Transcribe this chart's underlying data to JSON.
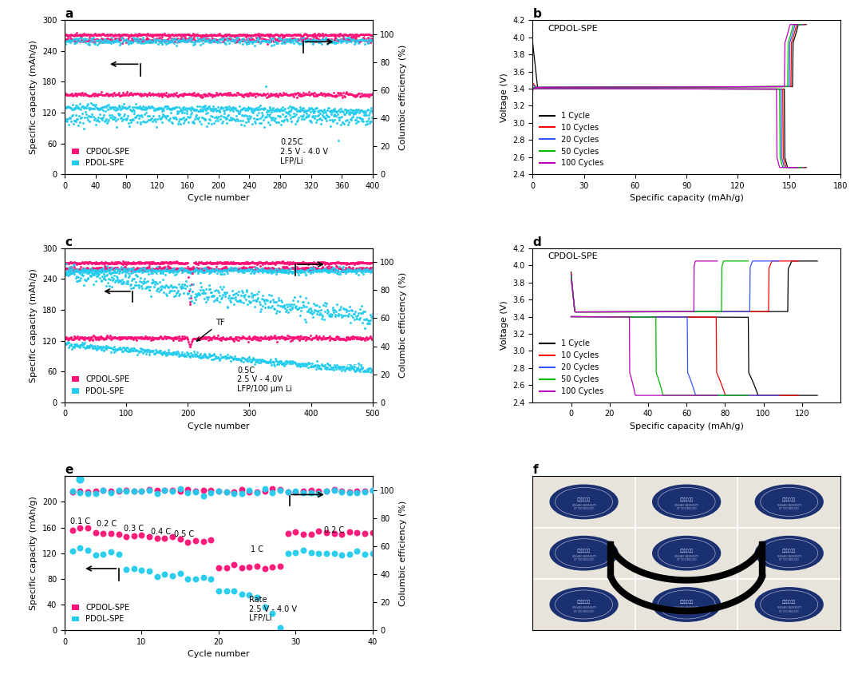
{
  "panel_a": {
    "xlabel": "Cycle number",
    "ylabel": "Specific capacity (mAh/g)",
    "ylabel2": "Columbic efficiency (%)",
    "xlim": [
      0,
      400
    ],
    "ylim1": [
      0,
      300
    ],
    "ylim2": [
      0,
      110
    ],
    "xticks": [
      0,
      40,
      80,
      120,
      160,
      200,
      240,
      280,
      320,
      360,
      400
    ],
    "yticks1": [
      0,
      60,
      120,
      180,
      240,
      300
    ],
    "yticks2": [
      0,
      20,
      40,
      60,
      80,
      100
    ],
    "annotation": "0.25C\n2.5 V - 4.0 V\nLFP/Li"
  },
  "panel_b": {
    "xlabel": "Specific capacity (mAh/g)",
    "ylabel": "Voltage (V)",
    "xlim": [
      0,
      180
    ],
    "ylim": [
      2.4,
      4.2
    ],
    "xticks": [
      0,
      30,
      60,
      90,
      120,
      150,
      180
    ],
    "yticks": [
      2.4,
      2.6,
      2.8,
      3.0,
      3.2,
      3.4,
      3.6,
      3.8,
      4.0,
      4.2
    ],
    "label": "CPDOL-SPE",
    "cycles": [
      "1 Cycle",
      "10 Cycles",
      "20 Cycles",
      "50 Cycles",
      "100 Cycles"
    ],
    "colors": [
      "#000000",
      "#FF0000",
      "#3355FF",
      "#00BB00",
      "#BB00BB"
    ]
  },
  "panel_c": {
    "xlabel": "Cycle number",
    "ylabel": "Specific capacity (mAh/g)",
    "ylabel2": "Columbic efficiency (%)",
    "xlim": [
      0,
      500
    ],
    "ylim1": [
      0,
      300
    ],
    "ylim2": [
      0,
      110
    ],
    "xticks": [
      0,
      100,
      200,
      300,
      400,
      500
    ],
    "yticks1": [
      0,
      60,
      120,
      180,
      240,
      300
    ],
    "yticks2": [
      0,
      20,
      40,
      60,
      80,
      100
    ],
    "annotation": "0.5C\n2.5 V - 4.0V\nLFP/100 μm Li"
  },
  "panel_d": {
    "xlabel": "Specific capacity (mAh/g)",
    "ylabel": "Voltage (V)",
    "xlim": [
      -20,
      140
    ],
    "ylim": [
      2.4,
      4.2
    ],
    "xticks": [
      0,
      20,
      40,
      60,
      80,
      100,
      120
    ],
    "yticks": [
      2.4,
      2.6,
      2.8,
      3.0,
      3.2,
      3.4,
      3.6,
      3.8,
      4.0,
      4.2
    ],
    "label": "CPDOL-SPE",
    "cycles": [
      "1 Cycle",
      "10 Cycles",
      "20 Cycles",
      "50 Cycles",
      "100 Cycles"
    ],
    "colors": [
      "#000000",
      "#FF0000",
      "#3355FF",
      "#00BB00",
      "#BB00BB"
    ]
  },
  "panel_e": {
    "xlabel": "Cycle number",
    "ylabel": "Specific capacity (mAh/g)",
    "ylabel2": "Columbic efficiency (%)",
    "xlim": [
      0,
      40
    ],
    "ylim1": [
      0,
      240
    ],
    "ylim2": [
      0,
      110
    ],
    "xticks": [
      0,
      10,
      20,
      30,
      40
    ],
    "yticks1": [
      0,
      40,
      80,
      120,
      160,
      200
    ],
    "yticks2": [
      0,
      20,
      40,
      60,
      80,
      100
    ],
    "annotation": "Rate\n2.5 V - 4.0 V\nLFP/Li",
    "rate_labels": [
      "0.1 C",
      "0.2 C",
      "0.3 C",
      "0.4 C",
      "0.5 C",
      "1 C",
      "0.2 C"
    ],
    "rate_x": [
      2.0,
      5.5,
      9.0,
      12.5,
      15.5,
      25.0,
      35.0
    ],
    "rate_y": [
      163,
      160,
      152,
      147,
      143,
      120,
      150
    ]
  },
  "colors": {
    "cpdol": "#FF1177",
    "pdol": "#22CCEE",
    "background": "#FFFFFF"
  }
}
